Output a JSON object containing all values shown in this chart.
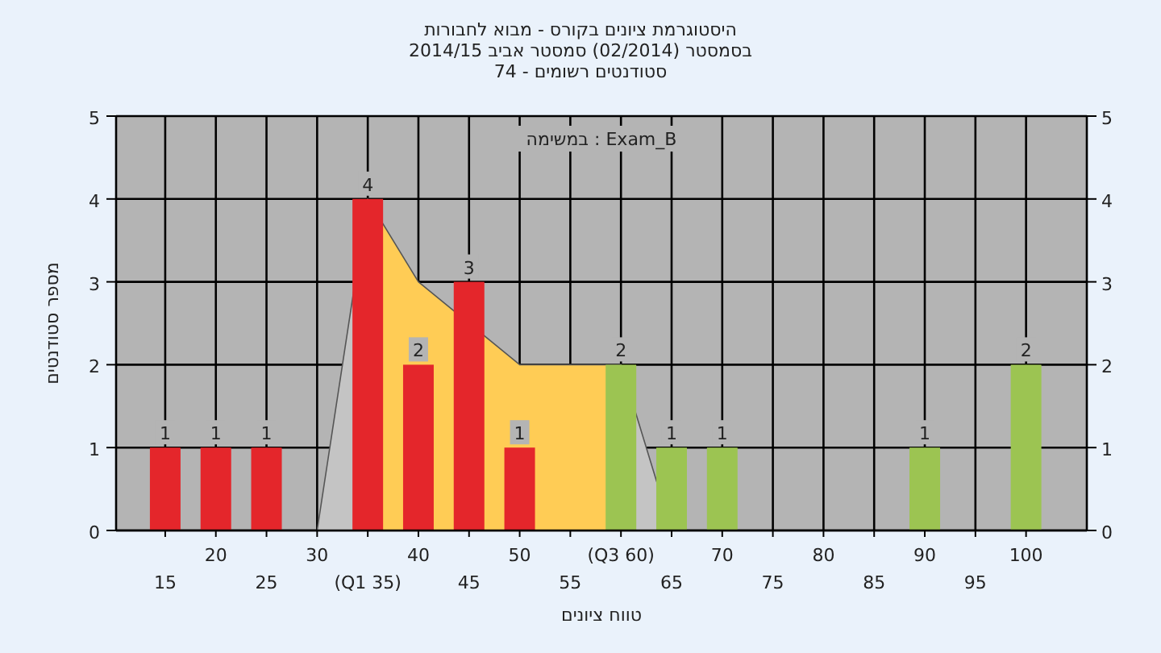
{
  "chart_data": {
    "type": "bar",
    "title": "היסטוגרמת ציונים בקורס - מבוא לחבורות",
    "subtitle": [
      "בסמסטר  (02/2014)  סמסטר אביב 2014/15",
      "סטודנטים רשומים - 74"
    ],
    "xlabel": "טווח ציונים",
    "ylabel": "מספר סטודנטים",
    "annotations": [
      "במשימה : Exam_B"
    ],
    "categories": [
      "15",
      "20",
      "25",
      "30",
      "(Q1 35)",
      "40",
      "45",
      "50",
      "55",
      "(Q3 60)",
      "65",
      "70",
      "75",
      "80",
      "85",
      "90",
      "95",
      "100"
    ],
    "series": [
      {
        "type": "area",
        "color": "#c4c4c4",
        "values": [
          null,
          null,
          null,
          0,
          4,
          null,
          null,
          null,
          null,
          2,
          0,
          null,
          null,
          null,
          null,
          null,
          null,
          null
        ]
      },
      {
        "type": "area",
        "color": "#ffcc55",
        "values": [
          null,
          null,
          null,
          null,
          4,
          3,
          null,
          2,
          2,
          2,
          null,
          null,
          null,
          null,
          null,
          null,
          null,
          null
        ]
      },
      {
        "values": [
          1,
          1,
          1,
          0,
          4,
          2,
          3,
          1,
          0,
          2,
          1,
          1,
          0,
          0,
          0,
          1,
          0,
          2
        ],
        "colors": [
          "#e4262b",
          "#e4262b",
          "#e4262b",
          "#e4262b",
          "#e4262b",
          "#e4262b",
          "#e4262b",
          "#e4262b",
          "#e4262b",
          "#9cc452",
          "#9cc452",
          "#9cc452",
          "#9cc452",
          "#9cc452",
          "#9cc452",
          "#9cc452",
          "#9cc452",
          "#9cc452"
        ],
        "value_labels": [
          "1",
          "1",
          "1",
          null,
          "4",
          "2",
          "3",
          "1",
          null,
          "2",
          "1",
          "1",
          null,
          null,
          null,
          "1",
          null,
          "2"
        ]
      }
    ],
    "ylim": [
      0,
      5
    ],
    "yticks": [
      0,
      1,
      2,
      3,
      4,
      5
    ],
    "y2lim": [
      0,
      5
    ],
    "y2ticks": [
      0,
      1,
      2,
      3,
      4,
      5
    ],
    "grid": true
  }
}
